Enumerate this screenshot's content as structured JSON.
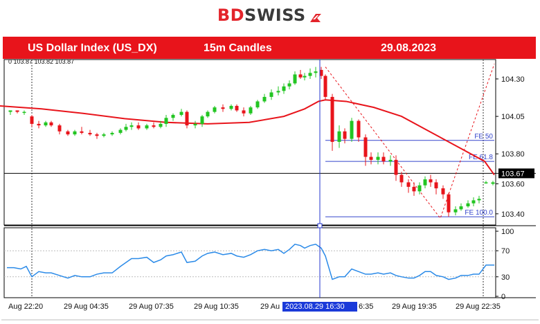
{
  "header": {
    "logo_part1": "BD",
    "logo_part2": "SWISS",
    "logo_icon": "flag-arrow-icon",
    "brand_color": "#e3242b"
  },
  "banner": {
    "symbol": "US Dollar Index (US_DX)",
    "timeframe": "15m Candles",
    "date": "29.08.2023",
    "background": "#e8141b"
  },
  "chart_data": [
    {
      "type": "candlestick",
      "top_left_label": "0 103.87 103.82 103.87",
      "y_ticks": [
        104.3,
        104.05,
        103.8,
        103.6,
        103.4
      ],
      "ylim": [
        103.33,
        104.42
      ],
      "current_price": 103.67,
      "moving_average": [
        [
          0,
          104.12
        ],
        [
          60,
          104.1
        ],
        [
          120,
          104.07
        ],
        [
          180,
          104.035
        ],
        [
          240,
          104.01
        ],
        [
          300,
          104.0
        ],
        [
          360,
          104.01
        ],
        [
          410,
          104.05
        ],
        [
          440,
          104.1
        ],
        [
          460,
          104.15
        ],
        [
          470,
          104.16
        ],
        [
          500,
          104.15
        ],
        [
          540,
          104.11
        ],
        [
          580,
          104.05
        ],
        [
          620,
          103.95
        ],
        [
          660,
          103.85
        ],
        [
          700,
          103.75
        ],
        [
          714,
          103.66
        ]
      ],
      "candles": [
        [
          15,
          104.08,
          104.09,
          104.06,
          104.09
        ],
        [
          25,
          104.09,
          104.09,
          104.07,
          104.08
        ],
        [
          35,
          104.08,
          104.09,
          104.06,
          104.08
        ],
        [
          46,
          104.05,
          104.06,
          103.98,
          104.0
        ],
        [
          56,
          104.0,
          104.02,
          103.97,
          103.99
        ],
        [
          66,
          103.99,
          104.02,
          103.98,
          104.01
        ],
        [
          74,
          104.01,
          104.02,
          103.98,
          103.99
        ],
        [
          86,
          103.99,
          104.0,
          103.93,
          103.95
        ],
        [
          98,
          103.95,
          103.96,
          103.92,
          103.93
        ],
        [
          108,
          103.93,
          103.96,
          103.92,
          103.95
        ],
        [
          118,
          103.95,
          103.98,
          103.93,
          103.94
        ],
        [
          130,
          103.94,
          103.96,
          103.92,
          103.93
        ],
        [
          140,
          103.93,
          103.94,
          103.9,
          103.92
        ],
        [
          150,
          103.92,
          103.94,
          103.91,
          103.93
        ],
        [
          162,
          103.93,
          103.95,
          103.92,
          103.94
        ],
        [
          174,
          103.94,
          103.97,
          103.93,
          103.96
        ],
        [
          182,
          103.96,
          104.0,
          103.95,
          103.98
        ],
        [
          190,
          103.98,
          104.01,
          103.96,
          103.99
        ],
        [
          200,
          103.99,
          104.01,
          103.96,
          103.97
        ],
        [
          212,
          103.97,
          104.0,
          103.96,
          103.99
        ],
        [
          222,
          103.99,
          104.01,
          103.97,
          103.98
        ],
        [
          232,
          103.98,
          104.02,
          103.97,
          104.0
        ],
        [
          240,
          104.0,
          104.06,
          103.98,
          104.04
        ],
        [
          250,
          104.04,
          104.07,
          104.02,
          104.06
        ],
        [
          262,
          104.06,
          104.1,
          104.05,
          104.08
        ],
        [
          270,
          104.08,
          104.09,
          103.97,
          103.99
        ],
        [
          282,
          103.99,
          104.02,
          103.97,
          104.0
        ],
        [
          292,
          104.0,
          104.06,
          103.98,
          104.05
        ],
        [
          300,
          104.05,
          104.09,
          104.04,
          104.08
        ],
        [
          310,
          104.08,
          104.12,
          104.07,
          104.11
        ],
        [
          322,
          104.11,
          104.13,
          104.08,
          104.1
        ],
        [
          334,
          104.1,
          104.13,
          104.09,
          104.12
        ],
        [
          342,
          104.12,
          104.13,
          104.08,
          104.09
        ],
        [
          352,
          104.09,
          104.11,
          104.05,
          104.07
        ],
        [
          362,
          104.07,
          104.12,
          104.06,
          104.11
        ],
        [
          372,
          104.11,
          104.16,
          104.1,
          104.15
        ],
        [
          382,
          104.15,
          104.2,
          104.14,
          104.18
        ],
        [
          392,
          104.18,
          104.23,
          104.16,
          104.21
        ],
        [
          402,
          104.21,
          104.25,
          104.19,
          104.22
        ],
        [
          410,
          104.22,
          104.27,
          104.2,
          104.25
        ],
        [
          418,
          104.25,
          104.29,
          104.23,
          104.27
        ],
        [
          426,
          104.27,
          104.35,
          104.26,
          104.33
        ],
        [
          434,
          104.33,
          104.36,
          104.3,
          104.31
        ],
        [
          440,
          104.31,
          104.34,
          104.29,
          104.32
        ],
        [
          448,
          104.32,
          104.37,
          104.3,
          104.34
        ],
        [
          456,
          104.34,
          104.38,
          104.31,
          104.35
        ],
        [
          464,
          104.36,
          104.38,
          104.3,
          104.32
        ],
        [
          470,
          104.32,
          104.33,
          104.16,
          104.18
        ],
        [
          480,
          104.18,
          104.2,
          103.82,
          103.88
        ],
        [
          490,
          103.88,
          103.99,
          103.84,
          103.95
        ],
        [
          498,
          103.95,
          103.97,
          103.87,
          103.9
        ],
        [
          508,
          103.9,
          104.04,
          103.88,
          104.02
        ],
        [
          518,
          104.02,
          104.03,
          103.88,
          103.91
        ],
        [
          528,
          103.91,
          103.93,
          103.72,
          103.78
        ],
        [
          536,
          103.78,
          103.81,
          103.73,
          103.76
        ],
        [
          546,
          103.76,
          103.81,
          103.73,
          103.78
        ],
        [
          554,
          103.78,
          103.81,
          103.73,
          103.75
        ],
        [
          564,
          103.75,
          103.79,
          103.72,
          103.76
        ],
        [
          572,
          103.76,
          103.79,
          103.62,
          103.66
        ],
        [
          580,
          103.66,
          103.68,
          103.58,
          103.61
        ],
        [
          590,
          103.61,
          103.63,
          103.54,
          103.58
        ],
        [
          598,
          103.58,
          103.61,
          103.52,
          103.55
        ],
        [
          606,
          103.55,
          103.61,
          103.53,
          103.59
        ],
        [
          614,
          103.59,
          103.65,
          103.57,
          103.63
        ],
        [
          622,
          103.63,
          103.66,
          103.58,
          103.61
        ],
        [
          630,
          103.61,
          103.63,
          103.53,
          103.57
        ],
        [
          640,
          103.57,
          103.59,
          103.5,
          103.53
        ],
        [
          648,
          103.53,
          103.54,
          103.38,
          103.41
        ],
        [
          658,
          103.41,
          103.45,
          103.39,
          103.43
        ],
        [
          666,
          103.43,
          103.47,
          103.42,
          103.45
        ],
        [
          676,
          103.45,
          103.49,
          103.44,
          103.47
        ],
        [
          684,
          103.47,
          103.51,
          103.45,
          103.49
        ],
        [
          692,
          103.49,
          103.52,
          103.47,
          103.5
        ],
        [
          702,
          103.61,
          103.62,
          103.6,
          103.61
        ],
        [
          712,
          103.6,
          103.62,
          103.59,
          103.61
        ]
      ],
      "fib_lines": [
        {
          "label": "FE 50",
          "price": 103.89
        },
        {
          "label": "FE 61.8",
          "price": 103.75
        },
        {
          "label": "FE 100.0",
          "price": 103.38
        }
      ],
      "horizontal_line_price": 103.67,
      "projection": [
        [
          470,
          104.38
        ],
        [
          636,
          103.37
        ],
        [
          714,
          104.4
        ]
      ],
      "x_labels": [
        "Aug 22:20",
        "29 Aug 04:35",
        "29 Aug 07:35",
        "29 Aug 10:35",
        "29 Au",
        "6:35",
        "29 Aug 19:35",
        "29 Aug 22:35"
      ],
      "cursor_label": "2023.08.29 16:30"
    },
    {
      "type": "line",
      "name": "oscillator",
      "y_ticks": [
        100,
        70,
        30,
        0
      ],
      "ylim": [
        0,
        100
      ],
      "points": [
        [
          10,
          44
        ],
        [
          20,
          44
        ],
        [
          30,
          42
        ],
        [
          38,
          46
        ],
        [
          46,
          30
        ],
        [
          56,
          38
        ],
        [
          66,
          36
        ],
        [
          74,
          36
        ],
        [
          86,
          32
        ],
        [
          98,
          28
        ],
        [
          108,
          32
        ],
        [
          118,
          30
        ],
        [
          130,
          30
        ],
        [
          140,
          34
        ],
        [
          150,
          36
        ],
        [
          162,
          36
        ],
        [
          174,
          46
        ],
        [
          182,
          52
        ],
        [
          190,
          58
        ],
        [
          200,
          58
        ],
        [
          212,
          60
        ],
        [
          222,
          52
        ],
        [
          232,
          56
        ],
        [
          240,
          62
        ],
        [
          250,
          64
        ],
        [
          262,
          68
        ],
        [
          270,
          52
        ],
        [
          282,
          54
        ],
        [
          292,
          62
        ],
        [
          300,
          66
        ],
        [
          310,
          68
        ],
        [
          322,
          64
        ],
        [
          334,
          66
        ],
        [
          342,
          62
        ],
        [
          352,
          60
        ],
        [
          362,
          64
        ],
        [
          372,
          70
        ],
        [
          382,
          72
        ],
        [
          392,
          70
        ],
        [
          402,
          72
        ],
        [
          410,
          66
        ],
        [
          418,
          72
        ],
        [
          426,
          80
        ],
        [
          434,
          78
        ],
        [
          440,
          74
        ],
        [
          448,
          78
        ],
        [
          456,
          80
        ],
        [
          464,
          74
        ],
        [
          470,
          62
        ],
        [
          480,
          26
        ],
        [
          490,
          30
        ],
        [
          498,
          30
        ],
        [
          508,
          42
        ],
        [
          518,
          38
        ],
        [
          528,
          34
        ],
        [
          536,
          34
        ],
        [
          546,
          36
        ],
        [
          554,
          34
        ],
        [
          564,
          36
        ],
        [
          572,
          32
        ],
        [
          580,
          30
        ],
        [
          590,
          28
        ],
        [
          598,
          28
        ],
        [
          606,
          32
        ],
        [
          614,
          38
        ],
        [
          622,
          38
        ],
        [
          630,
          32
        ],
        [
          640,
          30
        ],
        [
          648,
          26
        ],
        [
          658,
          28
        ],
        [
          666,
          32
        ],
        [
          676,
          32
        ],
        [
          684,
          34
        ],
        [
          692,
          34
        ],
        [
          702,
          48
        ],
        [
          714,
          48
        ]
      ]
    }
  ]
}
